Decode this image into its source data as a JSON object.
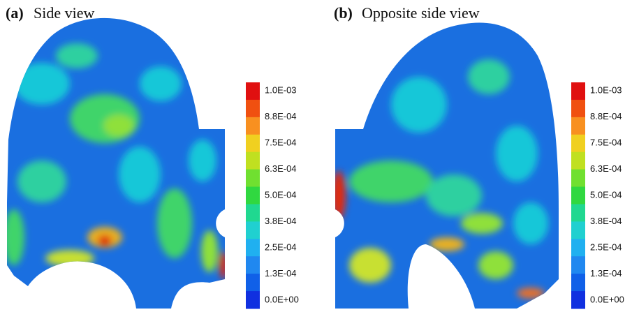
{
  "panels": [
    {
      "label": "(a)",
      "title": "Side view",
      "colorbar": [
        "1.0E-03",
        "8.8E-04",
        "7.5E-04",
        "6.3E-04",
        "5.0E-04",
        "3.8E-04",
        "2.5E-04",
        "1.3E-04",
        "0.0E+00"
      ]
    },
    {
      "label": "(b)",
      "title": "Opposite side view",
      "colorbar": [
        "1.0E-03",
        "8.8E-04",
        "7.5E-04",
        "6.3E-04",
        "5.0E-04",
        "3.8E-04",
        "2.5E-04",
        "1.3E-04",
        "0.0E+00"
      ]
    }
  ]
}
